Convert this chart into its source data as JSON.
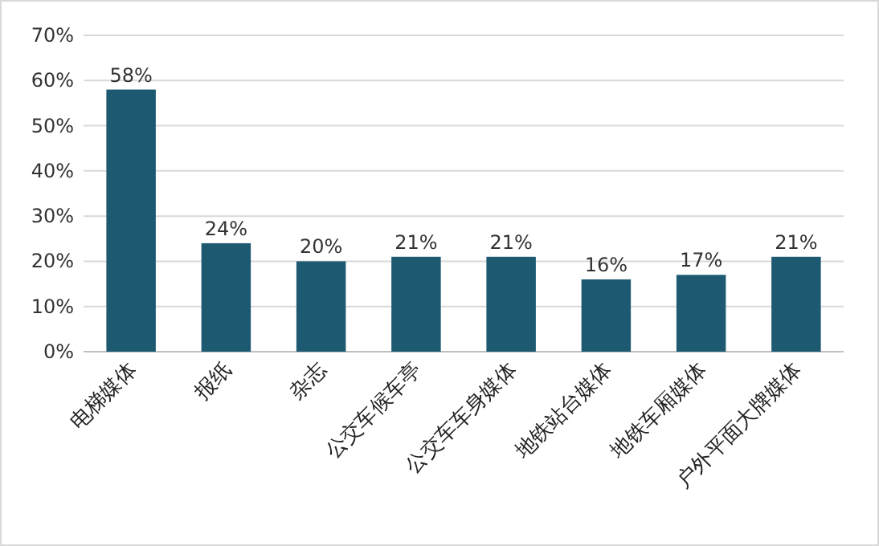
{
  "chart_data": {
    "type": "bar",
    "categories": [
      "电梯媒体",
      "报纸",
      "杂志",
      "公交车候车亭",
      "公交车车身媒体",
      "地铁站台媒体",
      "地铁车厢媒体",
      "户外平面大牌媒体"
    ],
    "values": [
      58,
      24,
      20,
      21,
      21,
      16,
      17,
      21
    ],
    "value_labels": [
      "58%",
      "24%",
      "20%",
      "21%",
      "21%",
      "16%",
      "17%",
      "21%"
    ],
    "color": "#1d5a72",
    "ylim": [
      0,
      70
    ],
    "yticks": [
      {
        "value": 0,
        "label": "0%"
      },
      {
        "value": 10,
        "label": "10%"
      },
      {
        "value": 20,
        "label": "20%"
      },
      {
        "value": 30,
        "label": "30%"
      },
      {
        "value": 40,
        "label": "40%"
      },
      {
        "value": 50,
        "label": "50%"
      },
      {
        "value": 60,
        "label": "60%"
      },
      {
        "value": 70,
        "label": "70%"
      }
    ],
    "grid": "y"
  }
}
